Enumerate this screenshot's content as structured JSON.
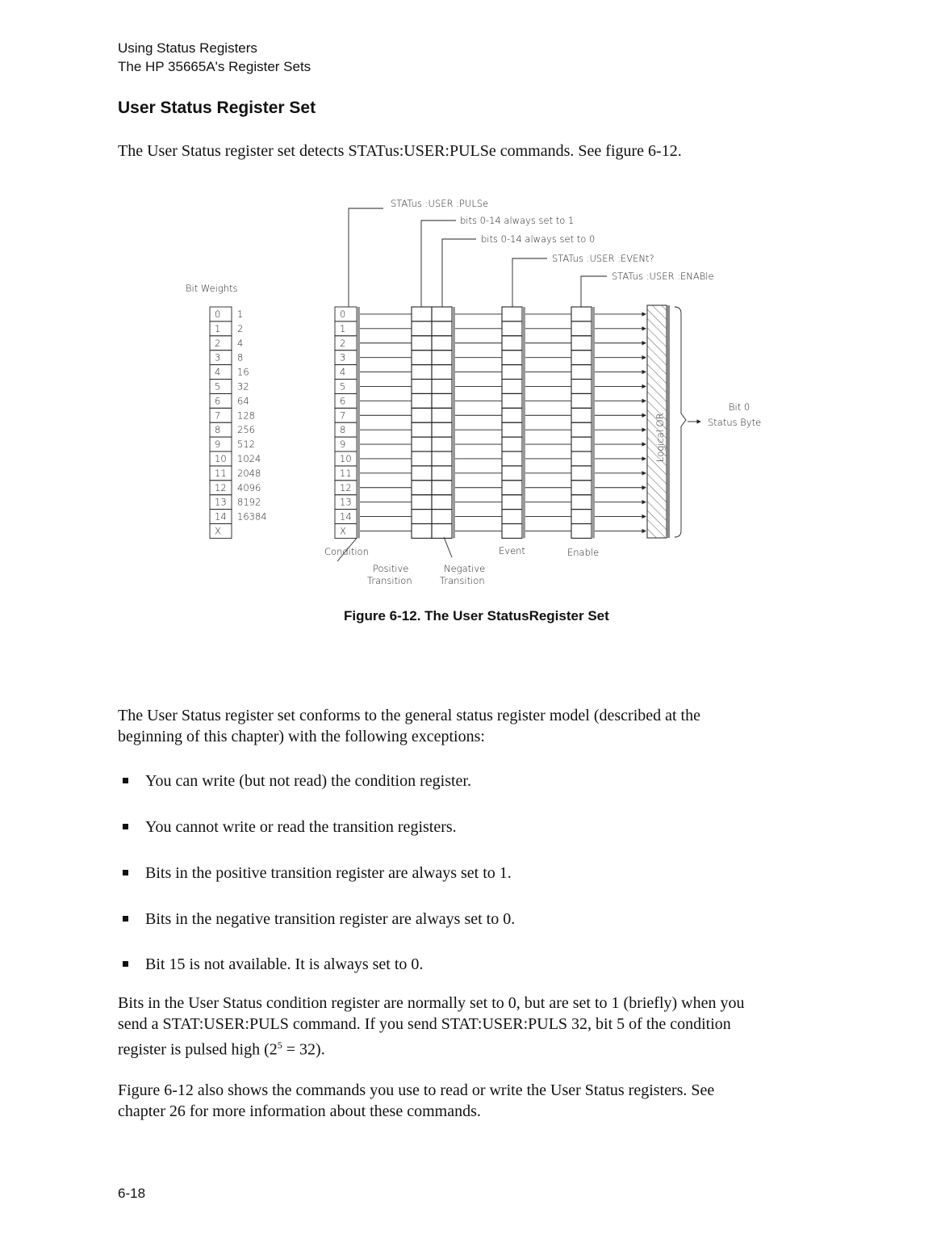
{
  "header": {
    "line1": "Using Status Registers",
    "line2": "The HP 35665A's Register Sets"
  },
  "section_title": "User Status Register Set",
  "intro": "The User Status register set detects STATus:USER:PULSe commands.  See figure 6-12.",
  "figure": {
    "commands": {
      "pulse": "STATus :USER :PULSe",
      "pos_trans": "bits 0-14 always set to 1",
      "neg_trans": "bits 0-14 always set to 0",
      "event": "STATus :USER :EVENt?",
      "enable": "STATus :USER :ENABle"
    },
    "bit_weights_label": "Bit Weights",
    "bits": [
      "0",
      "1",
      "2",
      "3",
      "4",
      "5",
      "6",
      "7",
      "8",
      "9",
      "10",
      "11",
      "12",
      "13",
      "14",
      "X"
    ],
    "weights": [
      "1",
      "2",
      "4",
      "8",
      "16",
      "32",
      "64",
      "128",
      "256",
      "512",
      "1024",
      "2048",
      "4096",
      "8192",
      "16384",
      ""
    ],
    "labels": {
      "condition": "Condition",
      "positive": "Positive",
      "negative": "Negative",
      "transition": "Transition",
      "event": "Event",
      "enable": "Enable",
      "logical_or": "Logical OR",
      "bit0": "Bit 0",
      "status_byte": "Status Byte"
    },
    "caption": "Figure 6-12.  The User StatusRegister Set"
  },
  "para1_line1": "The User Status register set conforms to the general status register model (described at the",
  "para1_line2": "beginning of this chapter) with the following exceptions:",
  "bullets": [
    "You can write (but not read) the condition register.",
    "You cannot write or read the transition registers.",
    "Bits in the positive transition register are always set to 1.",
    "Bits in the negative transition register are always set to 0.",
    "Bit 15 is not available.  It is always set to 0."
  ],
  "para2": {
    "line1": "Bits in the User Status condition register are normally set to 0, but are set to 1 (briefly) when you",
    "line2": "send a STAT:USER:PULS command.  If you send STAT:USER:PULS 32, bit 5 of the condition",
    "line3_pre": "register is pulsed high (2",
    "line3_sup": "5",
    "line3_post": " = 32)."
  },
  "para3": {
    "line1": "Figure 6-12 also shows the commands you use to read or write the User Status registers.  See",
    "line2": "chapter 26 for more information about these commands."
  },
  "page_number": "6-18"
}
